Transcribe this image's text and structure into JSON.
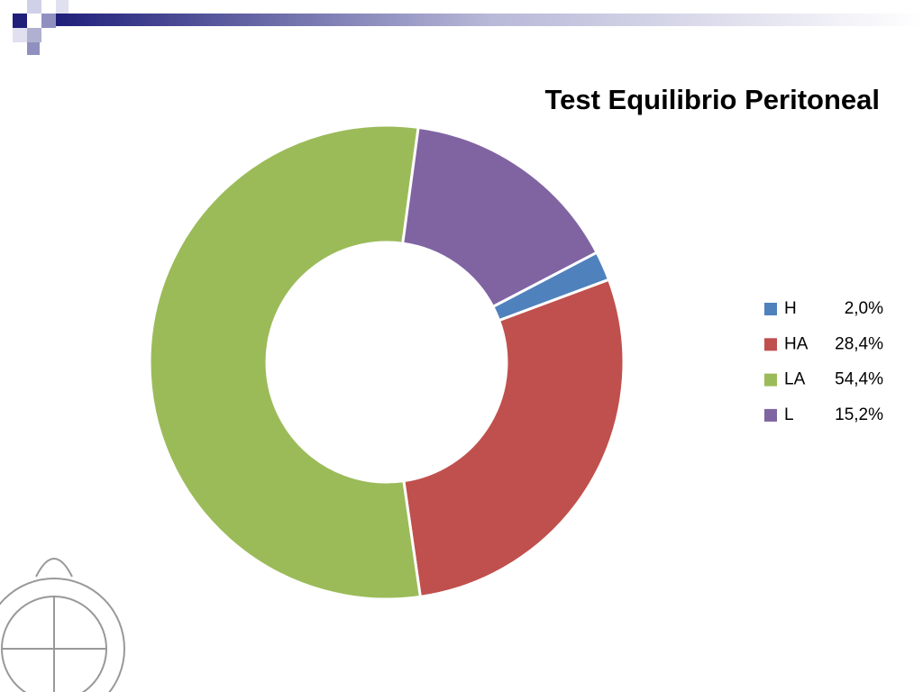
{
  "chart_data": {
    "type": "donut",
    "title": "Test Equilibrio Peritoneal",
    "categories": [
      "H",
      "HA",
      "LA",
      "L"
    ],
    "values": [
      2.0,
      28.4,
      54.4,
      15.2
    ],
    "value_labels": [
      "2,0%",
      "28,4%",
      "54,4%",
      "15,2%"
    ],
    "colors": [
      "#4f81bd",
      "#c0504d",
      "#9bbb59",
      "#8064a2"
    ],
    "legend": "right"
  }
}
